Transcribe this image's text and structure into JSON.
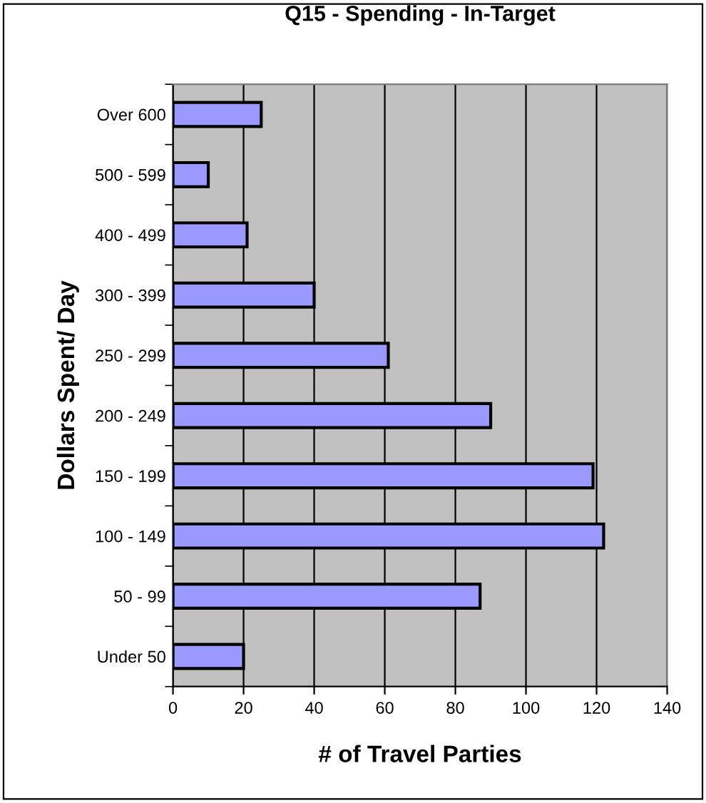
{
  "chart_data": {
    "type": "bar",
    "orientation": "horizontal",
    "title": "Q15 - Spending - In-Target",
    "xlabel": "# of Travel Parties",
    "ylabel": "Dollars Spent/ Day",
    "categories": [
      "Over 600",
      "500 - 599",
      "400 - 499",
      "300 - 399",
      "250 - 299",
      "200 - 249",
      "150 - 199",
      "100 - 149",
      "50 - 99",
      "Under 50"
    ],
    "values": [
      25,
      10,
      21,
      40,
      61,
      90,
      119,
      122,
      87,
      20
    ],
    "color": "#9999ff",
    "xlim": [
      0,
      140
    ],
    "xticks": [
      0,
      20,
      40,
      60,
      80,
      100,
      120,
      140
    ],
    "grid": "x",
    "legend": false
  }
}
